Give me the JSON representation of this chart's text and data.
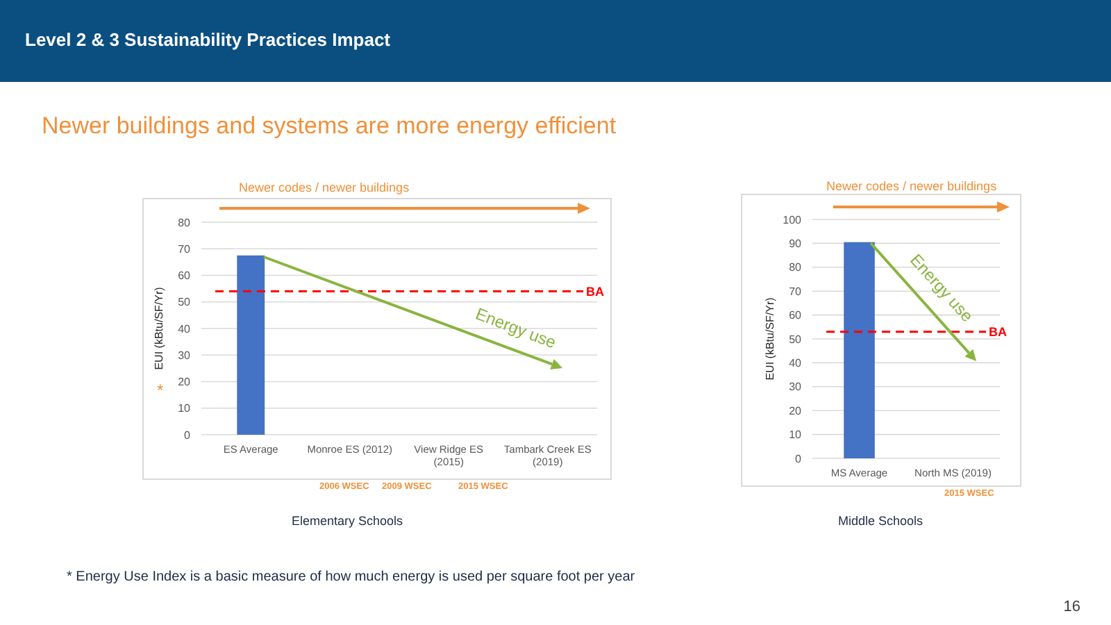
{
  "chart_data": [
    {
      "type": "bar",
      "title": "Level 2 & 3 Sustainability Practices Impact",
      "subtitle": "Newer buildings and systems are more energy efficient",
      "xlabel": "Elementary Schools",
      "ylabel": "EUI (kBtu/SF/Yr)",
      "categories": [
        "ES Average",
        "Monroe ES (2012)",
        "View Ridge ES (2015)",
        "Tambark Creek ES (2019)"
      ],
      "values": [
        67.5,
        null,
        null,
        null
      ],
      "color": "#4472c4",
      "ylim": [
        0,
        80
      ],
      "yticks": [
        0,
        10,
        20,
        30,
        40,
        50,
        60,
        70,
        80
      ],
      "grid": "y",
      "ref_lines": [
        {
          "axis": "y",
          "value": 54,
          "label": "BA",
          "color": "#ff0000",
          "line_style": "dashed"
        }
      ],
      "annotations": [
        "Newer codes / newer buildings",
        "Energy use",
        "2006 WSEC",
        "2009 WSEC",
        "2015 WSEC",
        "*",
        "* Energy Use Index is a basic measure of how much energy is used per square foot per year",
        "16"
      ]
    },
    {
      "type": "bar",
      "xlabel": "Middle Schools",
      "ylabel": "EUI (kBtu/SF/Yr)",
      "categories": [
        "MS Average",
        "North MS (2019)"
      ],
      "values": [
        90.5,
        null
      ],
      "color": "#4472c4",
      "ylim": [
        0,
        100
      ],
      "yticks": [
        0,
        10,
        20,
        30,
        40,
        50,
        60,
        70,
        80,
        90,
        100
      ],
      "grid": "y",
      "ref_lines": [
        {
          "axis": "y",
          "value": 53,
          "label": "BA",
          "color": "#ff0000",
          "line_style": "dashed"
        }
      ],
      "annotations": [
        "Newer codes / newer buildings",
        "Energy use",
        "2015 WSEC"
      ]
    }
  ]
}
